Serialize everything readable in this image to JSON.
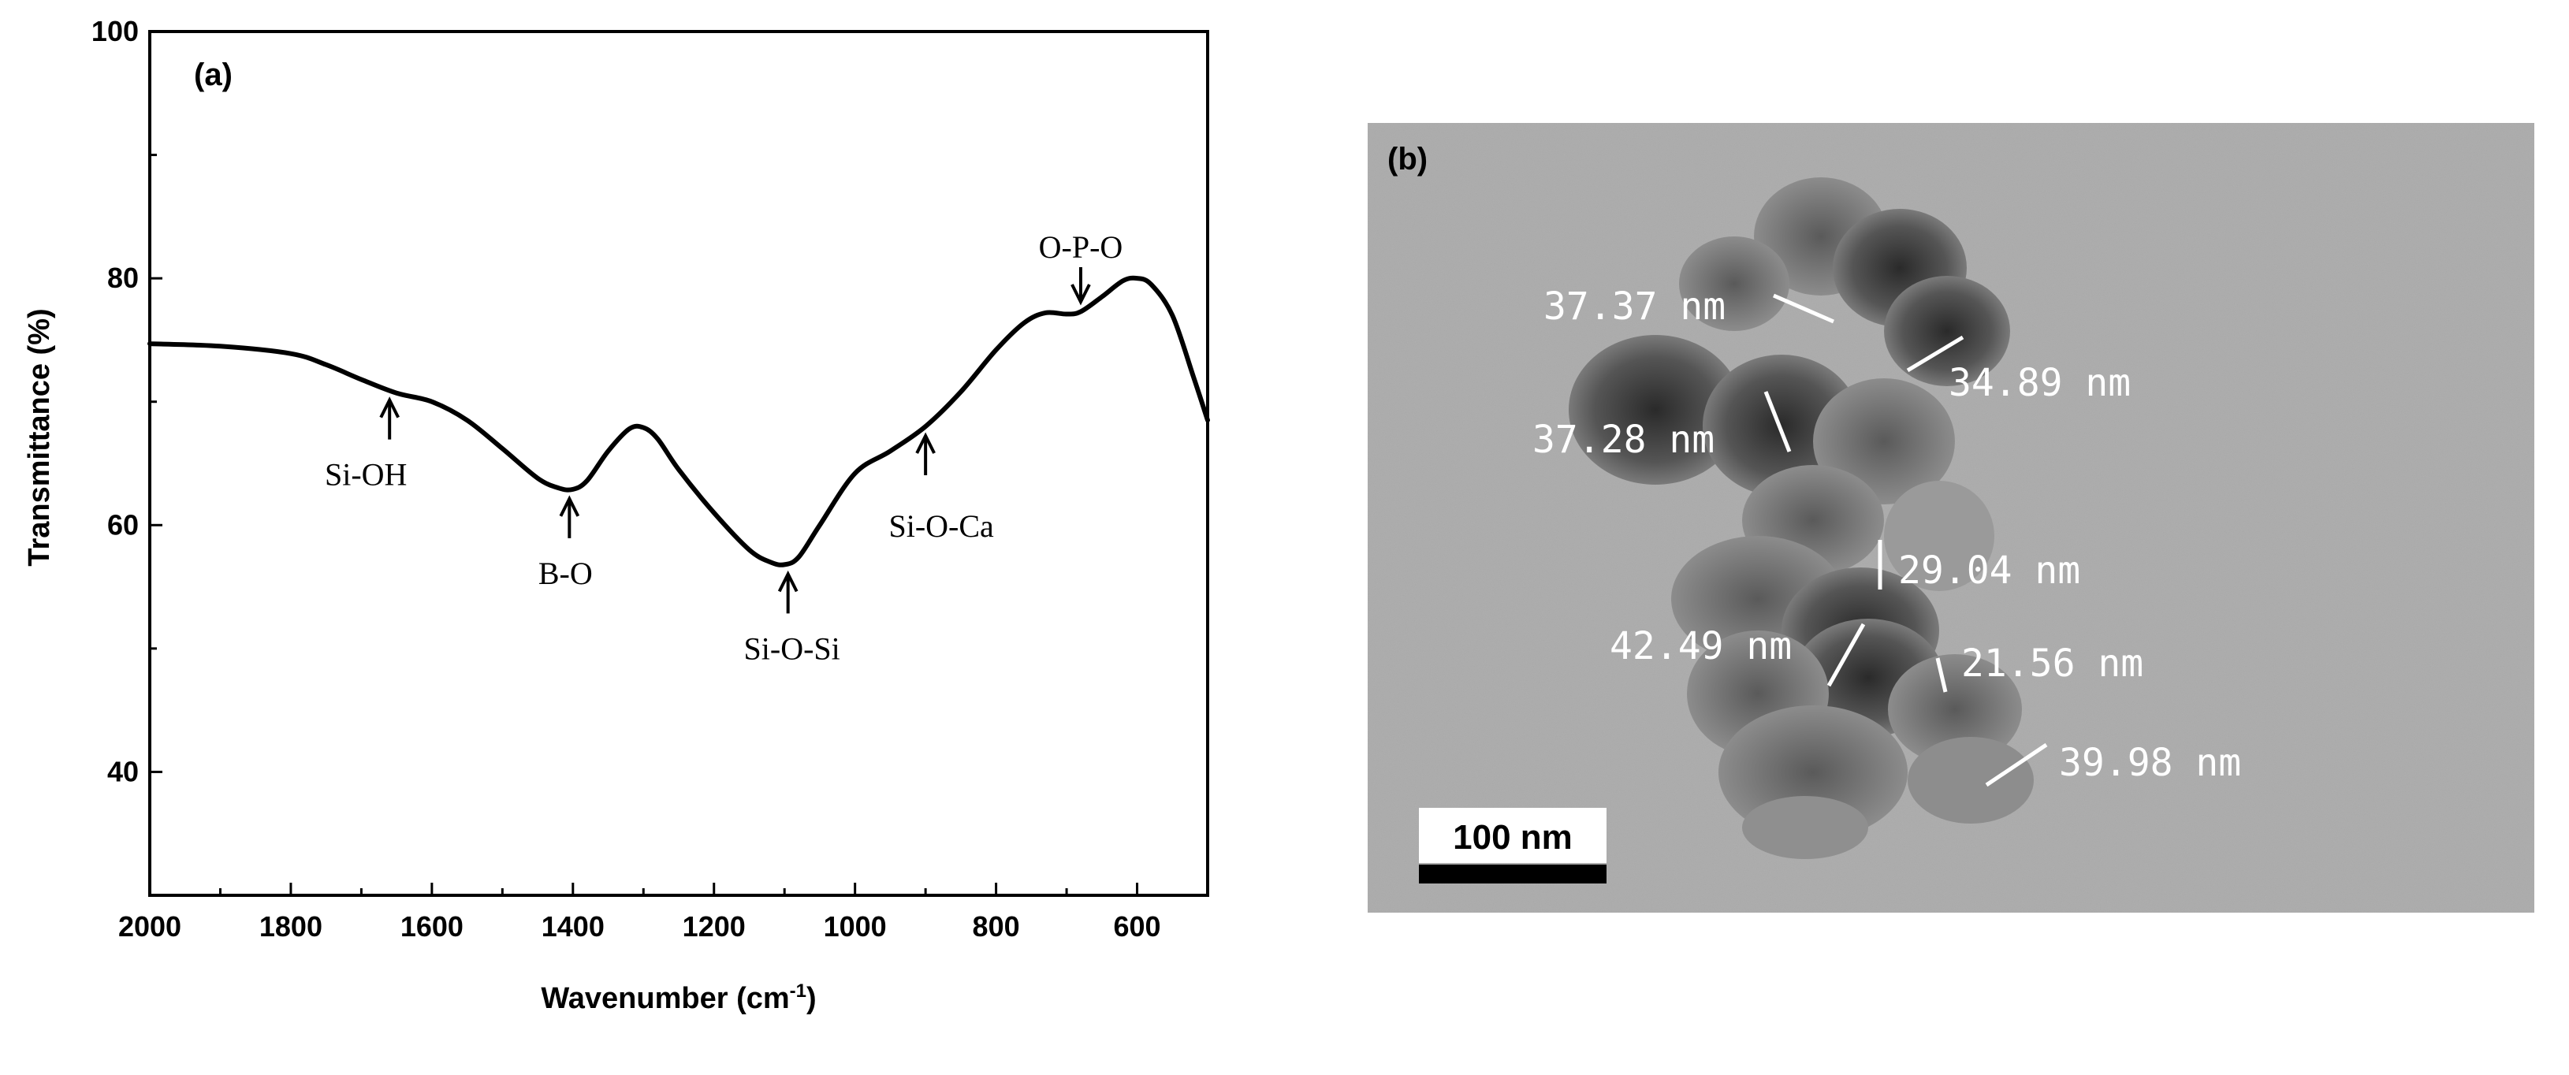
{
  "chart_data": {
    "type": "line",
    "panel_label": "(a)",
    "xlabel_main": "Wavenumber (cm",
    "xlabel_sup": "-1",
    "xlabel_end": ")",
    "ylabel": "Transmittance  (%)",
    "xlim": [
      2000,
      500
    ],
    "ylim": [
      30,
      100
    ],
    "x_ticks": [
      "2000",
      "1800",
      "1600",
      "1400",
      "1200",
      "1000",
      "800",
      "600"
    ],
    "y_ticks": [
      "100",
      "80",
      "60",
      "40"
    ],
    "series": [
      {
        "x": [
          2000,
          1900,
          1800,
          1750,
          1700,
          1650,
          1600,
          1550,
          1500,
          1450,
          1420,
          1400,
          1380,
          1350,
          1320,
          1300,
          1280,
          1250,
          1200,
          1150,
          1120,
          1100,
          1080,
          1050,
          1000,
          950,
          900,
          850,
          800,
          760,
          730,
          700,
          680,
          650,
          620,
          600,
          580,
          550,
          520,
          500
        ],
        "values": [
          74.7,
          74.5,
          73.9,
          73.0,
          71.8,
          70.7,
          70.0,
          68.5,
          66.2,
          63.8,
          63.0,
          62.9,
          63.6,
          66.0,
          67.8,
          67.9,
          67.0,
          64.5,
          61.0,
          58.0,
          57.0,
          56.8,
          57.4,
          60.0,
          64.2,
          66.0,
          68.0,
          70.8,
          74.2,
          76.4,
          77.2,
          77.1,
          77.3,
          78.5,
          79.8,
          80.0,
          79.5,
          77.0,
          72.0,
          68.5
        ]
      }
    ],
    "annotations": [
      {
        "label": "Si-OH",
        "x": 1660,
        "y": 70.9
      },
      {
        "label": "B-O",
        "x": 1405,
        "y": 62.9
      },
      {
        "label": "Si-O-Si",
        "x": 1095,
        "y": 56.8
      },
      {
        "label": "Si-O-Ca",
        "x": 900,
        "y": 68.0
      },
      {
        "label": "O-P-O",
        "x": 680,
        "y": 77.2
      }
    ]
  },
  "tem_image": {
    "panel_label": "(b)",
    "scale_bar_label": "100 nm",
    "measurements": [
      "37.37 nm",
      "34.89 nm",
      "37.28 nm",
      "29.04 nm",
      "42.49 nm",
      "21.56 nm",
      "39.98 nm"
    ]
  }
}
